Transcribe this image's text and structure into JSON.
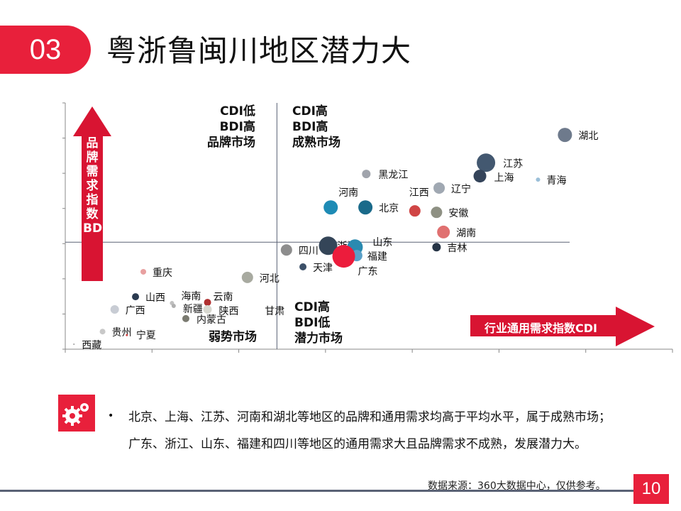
{
  "header": {
    "number": "03",
    "title": "粤浙鲁闽川地区潜力大"
  },
  "colors": {
    "accent": "#e8203b",
    "arrow": "#d81432",
    "axis": "#5a6275"
  },
  "chart_data": {
    "type": "scatter",
    "title": "",
    "grid": false,
    "xlabel": "行业通用需求指数CDI",
    "ylabel": "品牌需求指数BDI",
    "xlim": [
      0,
      7
    ],
    "ylim": [
      0,
      7
    ],
    "x_divider": 2.44,
    "y_divider": 3.04,
    "quadrants": {
      "top_left": "CDI低\nBDI高\n品牌市场",
      "top_right": "CDI高\nBDI高\n成熟市场",
      "bottom_left": "弱势市场",
      "bottom_right": "CDI高\nBDI低\n潜力市场"
    },
    "points": [
      {
        "name": "湖北",
        "x": 5.76,
        "y": 6.09,
        "size": 10,
        "color": "#6e7a8c"
      },
      {
        "name": "江苏",
        "x": 4.85,
        "y": 5.3,
        "size": 13,
        "color": "#435870"
      },
      {
        "name": "上海",
        "x": 4.78,
        "y": 4.92,
        "size": 9,
        "color": "#34445a"
      },
      {
        "name": "青海",
        "x": 5.45,
        "y": 4.82,
        "size": 3,
        "color": "#9bbfd8"
      },
      {
        "name": "辽宁",
        "x": 4.31,
        "y": 4.58,
        "size": 8,
        "color": "#a0a8b2"
      },
      {
        "name": "黑龙江",
        "x": 3.47,
        "y": 4.98,
        "size": 6,
        "color": "#a0a4ac"
      },
      {
        "name": "河南",
        "x": 3.06,
        "y": 4.03,
        "size": 10,
        "color": "#1e8bb5"
      },
      {
        "name": "北京",
        "x": 3.46,
        "y": 4.03,
        "size": 10,
        "color": "#1a6a8a"
      },
      {
        "name": "江西",
        "x": 4.03,
        "y": 3.93,
        "size": 8,
        "color": "#d04545"
      },
      {
        "name": "安徽",
        "x": 4.28,
        "y": 3.89,
        "size": 8,
        "color": "#8e9083"
      },
      {
        "name": "湖南",
        "x": 4.36,
        "y": 3.33,
        "size": 9,
        "color": "#e07070"
      },
      {
        "name": "吉林",
        "x": 4.28,
        "y": 2.9,
        "size": 6,
        "color": "#263446"
      },
      {
        "name": "四川",
        "x": 2.55,
        "y": 2.82,
        "size": 8,
        "color": "#8d8d8d"
      },
      {
        "name": "浙江",
        "x": 3.03,
        "y": 2.94,
        "size": 13,
        "color": "#344558"
      },
      {
        "name": "山东",
        "x": 3.34,
        "y": 2.9,
        "size": 11,
        "color": "#2a8ab0"
      },
      {
        "name": "福建",
        "x": 3.36,
        "y": 2.66,
        "size": 8,
        "color": "#5aa0c8"
      },
      {
        "name": "广东",
        "x": 3.21,
        "y": 2.64,
        "size": 16,
        "color": "#ec1c3c"
      },
      {
        "name": "天津",
        "x": 2.74,
        "y": 2.34,
        "size": 5,
        "color": "#3c5068"
      },
      {
        "name": "河北",
        "x": 2.1,
        "y": 2.04,
        "size": 8,
        "color": "#a8aaa0"
      },
      {
        "name": "重庆",
        "x": 0.9,
        "y": 2.2,
        "size": 4,
        "color": "#e8a0a0"
      },
      {
        "name": "山西",
        "x": 0.81,
        "y": 1.49,
        "size": 5,
        "color": "#2a3a50"
      },
      {
        "name": "海南",
        "x": 1.23,
        "y": 1.31,
        "size": 3,
        "color": "#c0c0c0"
      },
      {
        "name": "新疆",
        "x": 1.25,
        "y": 1.23,
        "size": 3,
        "color": "#b0b0b0"
      },
      {
        "name": "云南",
        "x": 1.64,
        "y": 1.33,
        "size": 5,
        "color": "#b03030"
      },
      {
        "name": "陕西",
        "x": 1.64,
        "y": 1.13,
        "size": 6,
        "color": "#d8d8d0"
      },
      {
        "name": "甘肃",
        "x": 2.3,
        "y": 1.13,
        "size": 0,
        "color": "#d8d8d0"
      },
      {
        "name": "内蒙古",
        "x": 1.39,
        "y": 0.87,
        "size": 5,
        "color": "#7a7a70"
      },
      {
        "name": "广西",
        "x": 0.57,
        "y": 1.13,
        "size": 6,
        "color": "#c8ccd4"
      },
      {
        "name": "贵州",
        "x": 0.43,
        "y": 0.5,
        "size": 4,
        "color": "#c8c8c8"
      },
      {
        "name": "宁夏",
        "x": 0.71,
        "y": 0.4,
        "size": 1.5,
        "color": "#d04040"
      },
      {
        "name": "西藏",
        "x": 0.1,
        "y": 0.14,
        "size": 1,
        "color": "#999999"
      }
    ]
  },
  "summary": {
    "bullet": "•",
    "text": "北京、上海、江苏、河南和湖北等地区的品牌和通用需求均高于平均水平，属于成熟市场；广东、浙江、山东、福建和四川等地区的通用需求大且品牌需求不成熟，发展潜力大。"
  },
  "footer": {
    "source": "数据来源：360大数据中心，仅供参考。",
    "page": "10"
  }
}
